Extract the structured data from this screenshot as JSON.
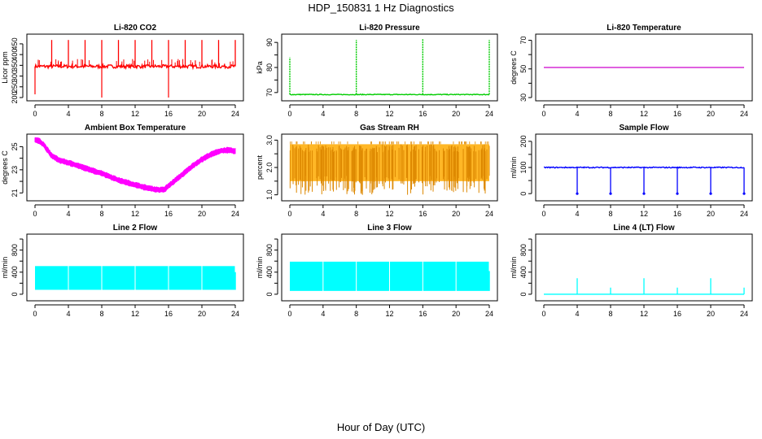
{
  "figure": {
    "title": "HDP_150831  1 Hz Diagnostics",
    "xlabel": "Hour of Day (UTC)"
  },
  "chart_data": [
    {
      "id": "co2",
      "type": "line",
      "title": "Li-820 CO2",
      "ylabel": "Licor ppm",
      "color": "#ff0000",
      "x_ticks": [
        0,
        4,
        8,
        12,
        16,
        20,
        24
      ],
      "xlim": [
        0,
        24
      ],
      "y_ticks": [
        200,
        250,
        300,
        350,
        400,
        450
      ],
      "ylim": [
        200,
        480
      ],
      "baseline": 345,
      "noise": 8,
      "spikes_up": [
        2,
        4,
        6,
        8,
        10,
        12,
        14,
        16,
        18,
        20,
        22,
        24
      ],
      "spike_up_value": 468,
      "spikes_down": [
        {
          "x": 0,
          "y": 215
        },
        {
          "x": 8,
          "y": 200
        },
        {
          "x": 16,
          "y": 200
        }
      ]
    },
    {
      "id": "pressure",
      "type": "line",
      "title": "Li-820 Pressure",
      "ylabel": "kPa",
      "color": "#00cc00",
      "x_ticks": [
        0,
        4,
        8,
        12,
        16,
        20,
        24
      ],
      "xlim": [
        0,
        24
      ],
      "y_ticks": [
        70,
        75,
        80,
        85,
        90
      ],
      "y_tick_labels": [
        "70",
        "",
        "80",
        "",
        "90"
      ],
      "ylim": [
        68,
        92
      ],
      "baseline": 69.2,
      "noise": 0.15,
      "spikes_up": [
        {
          "x": 0,
          "y": 84
        },
        {
          "x": 8,
          "y": 91
        },
        {
          "x": 16,
          "y": 91.5
        },
        {
          "x": 24,
          "y": 91
        }
      ]
    },
    {
      "id": "temperature",
      "type": "line",
      "title": "Li-820 Temperature",
      "ylabel": "degrees C",
      "color": "#cc00cc",
      "x_ticks": [
        0,
        4,
        8,
        12,
        16,
        20,
        24
      ],
      "xlim": [
        0,
        24
      ],
      "y_ticks": [
        30,
        40,
        50,
        60,
        70
      ],
      "y_tick_labels": [
        "30",
        "",
        "50",
        "",
        "70"
      ],
      "ylim": [
        30,
        72
      ],
      "x": [
        0,
        24
      ],
      "y": [
        51,
        51
      ]
    },
    {
      "id": "box_temp",
      "type": "line",
      "title": "Ambient Box Temperature",
      "ylabel": "degrees C",
      "color": "#ff00ff",
      "x_ticks": [
        0,
        4,
        8,
        12,
        16,
        20,
        24
      ],
      "xlim": [
        0,
        24
      ],
      "y_ticks": [
        21,
        22,
        23,
        24,
        25
      ],
      "y_tick_labels": [
        "21",
        "",
        "23",
        "",
        "25"
      ],
      "ylim": [
        20.6,
        25.8
      ],
      "x": [
        0,
        0.5,
        1,
        1.5,
        2,
        3,
        4,
        5,
        6,
        7,
        8,
        9,
        10,
        11,
        12,
        13,
        14,
        15,
        15.5,
        16,
        17,
        18,
        19,
        20,
        21,
        22,
        23,
        24
      ],
      "y": [
        25.6,
        25.5,
        25.2,
        24.7,
        24.2,
        23.8,
        23.6,
        23.4,
        23.15,
        22.9,
        22.7,
        22.4,
        22.1,
        21.9,
        21.7,
        21.5,
        21.35,
        21.25,
        21.3,
        21.6,
        22.2,
        22.8,
        23.4,
        23.9,
        24.3,
        24.6,
        24.7,
        24.6
      ],
      "noise": 0.25
    },
    {
      "id": "rh",
      "type": "line",
      "title": "Gas Stream RH",
      "ylabel": "percent",
      "color": "#ffaa00",
      "x_ticks": [
        0,
        4,
        8,
        12,
        16,
        20,
        24
      ],
      "xlim": [
        0,
        24
      ],
      "y_ticks": [
        1.0,
        1.5,
        2.0,
        2.5,
        3.0
      ],
      "y_tick_labels": [
        "1.0",
        "",
        "2.0",
        "",
        "3.0"
      ],
      "ylim": [
        0.9,
        3.1
      ],
      "band_low": 1.5,
      "band_high": 2.85,
      "dip_low": 1.0
    },
    {
      "id": "sample_flow",
      "type": "line",
      "title": "Sample Flow",
      "ylabel": "ml/min",
      "color": "#0000ff",
      "x_ticks": [
        0,
        4,
        8,
        12,
        16,
        20,
        24
      ],
      "xlim": [
        0,
        24
      ],
      "y_ticks": [
        0,
        50,
        100,
        150,
        200
      ],
      "y_tick_labels": [
        "0",
        "",
        "100",
        "",
        "200"
      ],
      "ylim": [
        -15,
        215
      ],
      "baseline": 100,
      "noise": 2,
      "dips": [
        4,
        8,
        12,
        16,
        20,
        24
      ],
      "dip_value": 0
    },
    {
      "id": "line2",
      "type": "line",
      "title": "Line 2 Flow",
      "ylabel": "ml/min",
      "color": "#00ffff",
      "x_ticks": [
        0,
        4,
        8,
        12,
        16,
        20,
        24
      ],
      "xlim": [
        0,
        24
      ],
      "y_ticks": [
        0,
        200,
        400,
        600,
        800,
        1000
      ],
      "y_tick_labels": [
        "0",
        "",
        "400",
        "",
        "800",
        ""
      ],
      "ylim": [
        -60,
        1030
      ],
      "band_low": 80,
      "band_high": 510,
      "gaps": [
        4,
        8,
        12,
        16,
        20
      ],
      "end_value": 400
    },
    {
      "id": "line3",
      "type": "line",
      "title": "Line 3 Flow",
      "ylabel": "ml/min",
      "color": "#00ffff",
      "x_ticks": [
        0,
        4,
        8,
        12,
        16,
        20,
        24
      ],
      "xlim": [
        0,
        24
      ],
      "y_ticks": [
        0,
        200,
        400,
        600,
        800,
        1000
      ],
      "y_tick_labels": [
        "0",
        "",
        "400",
        "",
        "800",
        ""
      ],
      "ylim": [
        -60,
        1030
      ],
      "band_low": 60,
      "band_high": 590,
      "gaps": [
        4,
        8,
        12,
        16,
        20
      ],
      "end_value": 420
    },
    {
      "id": "line4",
      "type": "line",
      "title": "Line 4 (LT) Flow",
      "ylabel": "ml/min",
      "color": "#00ffff",
      "x_ticks": [
        0,
        4,
        8,
        12,
        16,
        20,
        24
      ],
      "xlim": [
        0,
        24
      ],
      "y_ticks": [
        0,
        200,
        400,
        600,
        800,
        1000
      ],
      "y_tick_labels": [
        "0",
        "",
        "400",
        "",
        "800",
        ""
      ],
      "ylim": [
        -60,
        1030
      ],
      "baseline": 0,
      "spikes_up": [
        {
          "x": 4,
          "y": 290
        },
        {
          "x": 8,
          "y": 120
        },
        {
          "x": 12,
          "y": 290
        },
        {
          "x": 16,
          "y": 120
        },
        {
          "x": 20,
          "y": 290
        },
        {
          "x": 24,
          "y": 120
        }
      ]
    }
  ]
}
